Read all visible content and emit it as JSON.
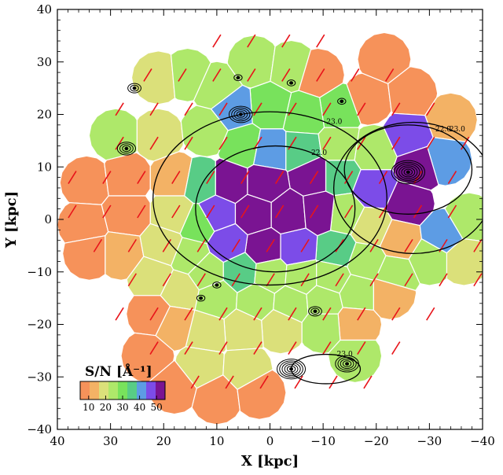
{
  "chart_data": {
    "type": "heatmap",
    "title": "",
    "xlabel": "X [kpc]",
    "ylabel": "Y [kpc]",
    "xlim": [
      40,
      -40
    ],
    "ylim": [
      -40,
      40
    ],
    "x_ticks": [
      40,
      30,
      20,
      10,
      0,
      -10,
      -20,
      -30,
      -40
    ],
    "y_ticks": [
      40,
      30,
      20,
      10,
      0,
      -10,
      -20,
      -30,
      -40
    ],
    "x_tick_labels": [
      "40",
      "30",
      "20",
      "10",
      "0",
      "−10",
      "−20",
      "−30",
      "−40"
    ],
    "y_tick_labels": [
      "40",
      "30",
      "20",
      "10",
      "0",
      "−10",
      "−20",
      "−30",
      "−40"
    ],
    "colorbar": {
      "label": "S/N [Å⁻¹]",
      "range": [
        5,
        55
      ],
      "ticks": [
        10,
        20,
        30,
        40,
        50
      ],
      "colors": [
        "#f6925a",
        "#f3b265",
        "#dbe07a",
        "#aee86a",
        "#78e25c",
        "#58cc86",
        "#5d9ce4",
        "#7c4ce8",
        "#7a1492"
      ]
    },
    "contour_labels": [
      "23.0",
      "22.0",
      "23.0",
      "22.0",
      "23.0"
    ],
    "cells": [
      {
        "x": 34.5,
        "y": 7.0,
        "sn": 8
      },
      {
        "x": 35.0,
        "y": -1.0,
        "sn": 8
      },
      {
        "x": 34.0,
        "y": -6.5,
        "sn": 8
      },
      {
        "x": 27.0,
        "y": 8.0,
        "sn": 8
      },
      {
        "x": 27.0,
        "y": 1.0,
        "sn": 9
      },
      {
        "x": 28.0,
        "y": -6.5,
        "sn": 12
      },
      {
        "x": 29.0,
        "y": 16.0,
        "sn": 24
      },
      {
        "x": 21.0,
        "y": 16.0,
        "sn": 17
      },
      {
        "x": 18.0,
        "y": 8.0,
        "sn": 16
      },
      {
        "x": 18.0,
        "y": 1.0,
        "sn": 18
      },
      {
        "x": 20.0,
        "y": -5.0,
        "sn": 19
      },
      {
        "x": 21.0,
        "y": 27.0,
        "sn": 18
      },
      {
        "x": 15.5,
        "y": 27.5,
        "sn": 25
      },
      {
        "x": 10.0,
        "y": 25.0,
        "sn": 22
      },
      {
        "x": 3.0,
        "y": 30.0,
        "sn": 25
      },
      {
        "x": -4.0,
        "y": 29.0,
        "sn": 24
      },
      {
        "x": -9.0,
        "y": 27.5,
        "sn": 9
      },
      {
        "x": -21.5,
        "y": 30.5,
        "sn": 8
      },
      {
        "x": -18.5,
        "y": 23.0,
        "sn": 9
      },
      {
        "x": -26.5,
        "y": 24.0,
        "sn": 10
      },
      {
        "x": -34.0,
        "y": 19.0,
        "sn": 11
      },
      {
        "x": -33.0,
        "y": 11.5,
        "sn": 41
      },
      {
        "x": -26.0,
        "y": 16.0,
        "sn": 46
      },
      {
        "x": -28.0,
        "y": 10.0,
        "sn": 52
      },
      {
        "x": -26.0,
        "y": 3.0,
        "sn": 51
      },
      {
        "x": -19.5,
        "y": 6.0,
        "sn": 44
      },
      {
        "x": -13.0,
        "y": 21.0,
        "sn": 28
      },
      {
        "x": -6.5,
        "y": 20.0,
        "sn": 31
      },
      {
        "x": 0.0,
        "y": 21.5,
        "sn": 30
      },
      {
        "x": 7.0,
        "y": 21.0,
        "sn": 40
      },
      {
        "x": 12.0,
        "y": 17.0,
        "sn": 24
      },
      {
        "x": 5.0,
        "y": 14.0,
        "sn": 31
      },
      {
        "x": 0.0,
        "y": 13.0,
        "sn": 41
      },
      {
        "x": -6.0,
        "y": 13.0,
        "sn": 35
      },
      {
        "x": -13.0,
        "y": 14.0,
        "sn": 24
      },
      {
        "x": -19.5,
        "y": 13.0,
        "sn": 23
      },
      {
        "x": -13.0,
        "y": 8.5,
        "sn": 36
      },
      {
        "x": -14.0,
        "y": 1.0,
        "sn": 25
      },
      {
        "x": -19.0,
        "y": -1.5,
        "sn": 21
      },
      {
        "x": -24.5,
        "y": -4.0,
        "sn": 15
      },
      {
        "x": -32.5,
        "y": -3.0,
        "sn": 42
      },
      {
        "x": -37.5,
        "y": 0.0,
        "sn": 22
      },
      {
        "x": -36.5,
        "y": -7.5,
        "sn": 18
      },
      {
        "x": -30.0,
        "y": -7.5,
        "sn": 22
      },
      {
        "x": -23.5,
        "y": -10.5,
        "sn": 23
      },
      {
        "x": -18.0,
        "y": -8.0,
        "sn": 25
      },
      {
        "x": -12.5,
        "y": -6.0,
        "sn": 38
      },
      {
        "x": -8.0,
        "y": 8.5,
        "sn": 50
      },
      {
        "x": 1.0,
        "y": 7.0,
        "sn": 52
      },
      {
        "x": 7.5,
        "y": 7.0,
        "sn": 52
      },
      {
        "x": 10.0,
        "y": 1.0,
        "sn": 49
      },
      {
        "x": 3.0,
        "y": 1.0,
        "sn": 54
      },
      {
        "x": -3.5,
        "y": 1.0,
        "sn": 54
      },
      {
        "x": -9.5,
        "y": 1.5,
        "sn": 52
      },
      {
        "x": -5.0,
        "y": -5.5,
        "sn": 47
      },
      {
        "x": 1.0,
        "y": -5.5,
        "sn": 52
      },
      {
        "x": 8.0,
        "y": -4.5,
        "sn": 46
      },
      {
        "x": 13.0,
        "y": 7.0,
        "sn": 33
      },
      {
        "x": 13.5,
        "y": -1.0,
        "sn": 28
      },
      {
        "x": 15.0,
        "y": -7.0,
        "sn": 26
      },
      {
        "x": 12.0,
        "y": -10.0,
        "sn": 22
      },
      {
        "x": 5.5,
        "y": -10.0,
        "sn": 38
      },
      {
        "x": 0.0,
        "y": -10.5,
        "sn": 26
      },
      {
        "x": -6.0,
        "y": -11.0,
        "sn": 27
      },
      {
        "x": -11.5,
        "y": -11.0,
        "sn": 24
      },
      {
        "x": 22.0,
        "y": -11.0,
        "sn": 17
      },
      {
        "x": 17.0,
        "y": -13.5,
        "sn": 19
      },
      {
        "x": 10.0,
        "y": -15.0,
        "sn": 22
      },
      {
        "x": 2.5,
        "y": -15.5,
        "sn": 23
      },
      {
        "x": -4.0,
        "y": -16.0,
        "sn": 24
      },
      {
        "x": -10.0,
        "y": -15.5,
        "sn": 25
      },
      {
        "x": -16.5,
        "y": -14.0,
        "sn": 22
      },
      {
        "x": -22.5,
        "y": -14.0,
        "sn": 12
      },
      {
        "x": -16.0,
        "y": -20.0,
        "sn": 16
      },
      {
        "x": -10.0,
        "y": -20.5,
        "sn": 25
      },
      {
        "x": -2.0,
        "y": -20.5,
        "sn": 18
      },
      {
        "x": 5.0,
        "y": -21.0,
        "sn": 20
      },
      {
        "x": 12.0,
        "y": -21.5,
        "sn": 18
      },
      {
        "x": 18.0,
        "y": -20.0,
        "sn": 12
      },
      {
        "x": 22.0,
        "y": -18.0,
        "sn": 9
      },
      {
        "x": 23.0,
        "y": -26.0,
        "sn": 9
      },
      {
        "x": 13.0,
        "y": -28.0,
        "sn": 18
      },
      {
        "x": 4.5,
        "y": -28.5,
        "sn": 19
      },
      {
        "x": 18.0,
        "y": -32.0,
        "sn": 9
      },
      {
        "x": 10.0,
        "y": -34.0,
        "sn": 9
      },
      {
        "x": 2.0,
        "y": -33.0,
        "sn": 10
      },
      {
        "x": -16.0,
        "y": -26.0,
        "sn": 23
      }
    ],
    "contours": [
      {
        "label": "23.0",
        "cx": 0.0,
        "cy": 4.0,
        "rx": 22.0,
        "ry": 16.5
      },
      {
        "label": "22.0",
        "cx": -1.0,
        "cy": 2.0,
        "rx": 15.0,
        "ry": 12.0
      },
      {
        "label": "22.0",
        "cx": -26.0,
        "cy": 9.5,
        "rx": 12.0,
        "ry": 8.5
      },
      {
        "label": "23.0",
        "cx": -27.0,
        "cy": 6.0,
        "rx": 15.0,
        "ry": 12.5
      },
      {
        "label": "23.0",
        "cx": -10.5,
        "cy": -28.5,
        "rx": 6.5,
        "ry": 2.8
      }
    ],
    "sources": [
      {
        "x": 25.5,
        "y": 25.0,
        "n": 3
      },
      {
        "x": 5.5,
        "y": 20.0,
        "n": 5
      },
      {
        "x": 27.0,
        "y": 13.5,
        "n": 4
      },
      {
        "x": 6.0,
        "y": 27.0,
        "n": 2
      },
      {
        "x": 10.0,
        "y": -12.5,
        "n": 2
      },
      {
        "x": 13.0,
        "y": -15.0,
        "n": 2
      },
      {
        "x": -8.5,
        "y": -17.5,
        "n": 3
      },
      {
        "x": -4.0,
        "y": -28.5,
        "n": 6
      },
      {
        "x": -14.5,
        "y": -27.5,
        "n": 5
      },
      {
        "x": -26.0,
        "y": 9.0,
        "n": 7
      },
      {
        "x": -13.5,
        "y": 22.5,
        "n": 2
      },
      {
        "x": -4.0,
        "y": 26.0,
        "n": 2
      }
    ]
  }
}
